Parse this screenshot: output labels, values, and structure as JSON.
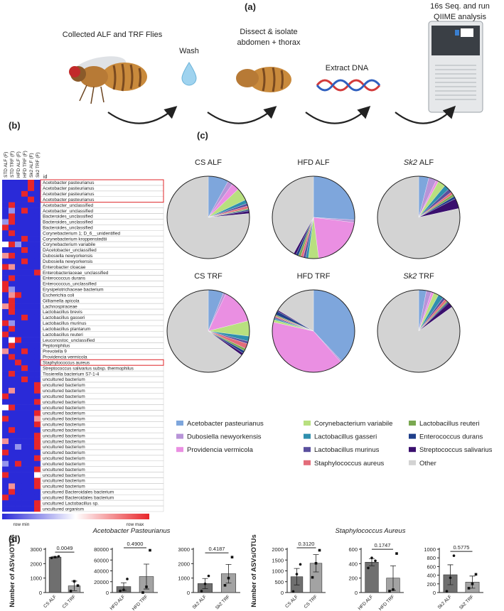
{
  "panel_labels": [
    "(a)",
    "(b)",
    "(c)",
    "(d)"
  ],
  "workflow": {
    "steps": [
      [
        "Collected ALF and TRF Flies"
      ],
      [
        "Wash"
      ],
      [
        "Dissect & isolate",
        "abdomen + thorax"
      ],
      [
        "Extract DNA"
      ],
      [
        "16s Seq. and run",
        "QIIME analysis"
      ]
    ]
  },
  "heatmap": {
    "columns": [
      "STD ALF (F)",
      "STD TRF (F)",
      "HFD ALF (F)",
      "HFD TRF (F)",
      "Sk2 ALF (F)",
      "Sk2 TRF (F)"
    ],
    "row_header": "id",
    "range": [
      -1,
      1
    ],
    "low_color": "#2a2ad8",
    "mid_color": "#ffffff",
    "high_color": "#e8262a",
    "legend": [
      "row min",
      "row max"
    ],
    "rows": [
      {
        "label": "Acetobacter pasteurianus",
        "values": [
          -1,
          -1,
          -1,
          -1,
          1,
          -1
        ],
        "highlight": true
      },
      {
        "label": "Acetobacter pasteurianus",
        "values": [
          -1,
          -1,
          -1,
          -1,
          1,
          -1
        ],
        "highlight": true
      },
      {
        "label": "Acetobacter pasteurianus",
        "values": [
          -1,
          -1,
          -1,
          1,
          -1,
          -1
        ],
        "highlight": true
      },
      {
        "label": "Acetobacter pasteurianus",
        "values": [
          -1,
          -1,
          -1,
          -1,
          1,
          -1
        ],
        "highlight": true
      },
      {
        "label": "Acetobacter_unclassified",
        "values": [
          -1,
          1,
          -1,
          -1,
          -1,
          -1
        ]
      },
      {
        "label": "Acetobacter_unclassified",
        "values": [
          -1,
          -0.5,
          -1,
          1,
          -1,
          -1
        ]
      },
      {
        "label": "Bacteroides_unclassified",
        "values": [
          -1,
          1,
          -1,
          -1,
          -1,
          -1
        ]
      },
      {
        "label": "Bacteroides_unclassified",
        "values": [
          -0.5,
          1,
          -1,
          -1,
          -1,
          -1
        ]
      },
      {
        "label": "Bacteroides_unclassified",
        "values": [
          1,
          -1,
          -1,
          -1,
          -1,
          -1
        ]
      },
      {
        "label": "Corynebacterium 1; D_6__unidentified",
        "values": [
          -1,
          1,
          -1,
          -1,
          -1,
          -1
        ]
      },
      {
        "label": "Corynebacterium kroppenstedtii",
        "values": [
          -1,
          -1,
          -1,
          1,
          -1,
          -1
        ]
      },
      {
        "label": "Corynebacterium variabile",
        "values": [
          0,
          1,
          -0.5,
          -1,
          -1,
          -1
        ]
      },
      {
        "label": "DAcetobacter_unclassified",
        "values": [
          -1,
          -1,
          -1,
          1,
          -1,
          -1
        ]
      },
      {
        "label": "Dubosiella newyorkensis",
        "values": [
          0.5,
          1,
          -1,
          -1,
          -1,
          -1
        ]
      },
      {
        "label": "Dubosiella newyorkensis",
        "values": [
          -1,
          -1,
          -1,
          1,
          -1,
          -1
        ]
      },
      {
        "label": "Enterobacter cloacae",
        "values": [
          1,
          0.5,
          -1,
          -1,
          -1,
          -1
        ]
      },
      {
        "label": "Enterobacteriaceae_unclassified",
        "values": [
          -1,
          -1,
          -1,
          -1,
          -1,
          1
        ]
      },
      {
        "label": "Enterococcus durans",
        "values": [
          -1,
          1,
          -1,
          -1,
          -1,
          -1
        ]
      },
      {
        "label": "Enterococcus_unclassified",
        "values": [
          1,
          -1,
          -1,
          -1,
          -1,
          -1
        ]
      },
      {
        "label": "Erysipelotrichaceae bacterium",
        "values": [
          1,
          -0.5,
          -1,
          -1,
          -1,
          -1
        ]
      },
      {
        "label": "Escherichia coli",
        "values": [
          -1,
          0.5,
          1,
          -1,
          -1,
          -1
        ]
      },
      {
        "label": "Gilliamella apicola",
        "values": [
          -1,
          1,
          -1,
          -1,
          -1,
          -1
        ]
      },
      {
        "label": "Lachnospiraceae",
        "values": [
          0.5,
          1,
          -1,
          -1,
          -1,
          -1
        ]
      },
      {
        "label": "Lactobacillus brevis",
        "values": [
          -1,
          1,
          -1,
          -1,
          -1,
          -1
        ]
      },
      {
        "label": "Lactobacillus gasseri",
        "values": [
          -1,
          -1,
          -1,
          1,
          -1,
          -1
        ]
      },
      {
        "label": "Lactobacillus murinus",
        "values": [
          1,
          -0.5,
          -1,
          -1,
          -1,
          -1
        ]
      },
      {
        "label": "Lactobacillus plantarum",
        "values": [
          -1,
          1,
          -1,
          -1,
          -1,
          -1
        ]
      },
      {
        "label": "Lactobacillus reuteri",
        "values": [
          1,
          -1,
          -1,
          -1,
          -1,
          -1
        ]
      },
      {
        "label": "Leuconostoc_unclassified",
        "values": [
          -1,
          0,
          1,
          -1,
          -1,
          -1
        ]
      },
      {
        "label": "Peptoniphilus",
        "values": [
          -1,
          1,
          -1,
          -1,
          -1,
          -1
        ]
      },
      {
        "label": "Prevotella 9",
        "values": [
          0.5,
          -1,
          -1,
          1,
          -1,
          -1
        ]
      },
      {
        "label": "Providencia vermicola",
        "values": [
          -1,
          1,
          -1,
          -1,
          -1,
          -1
        ]
      },
      {
        "label": "Staphylococcus aureus",
        "values": [
          -1,
          -1,
          1,
          -1,
          -1,
          -1
        ],
        "highlight": true
      },
      {
        "label": "Streptococcus salivarius subsp. thermophilus",
        "values": [
          -1,
          -1,
          -1,
          1,
          -1,
          -1
        ]
      },
      {
        "label": "Tissierella bacterium S7-1-4",
        "values": [
          -1,
          1,
          -1,
          -1,
          -1,
          -1
        ]
      },
      {
        "label": "uncultured bacterium",
        "values": [
          -1,
          -1,
          -1,
          1,
          -1,
          -1
        ]
      },
      {
        "label": "uncultured bacterium",
        "values": [
          -1,
          -1,
          -1,
          -1,
          -1,
          1
        ]
      },
      {
        "label": "uncultured bacterium",
        "values": [
          -1,
          0.5,
          -1,
          -1,
          -1,
          1
        ]
      },
      {
        "label": "uncultured bacterium",
        "values": [
          1,
          -1,
          -1,
          -1,
          -1,
          -1
        ]
      },
      {
        "label": "uncultured bacterium",
        "values": [
          -1,
          -1,
          -1,
          -1,
          -1,
          1
        ]
      },
      {
        "label": "uncultured bacterium",
        "values": [
          0,
          1,
          -1,
          -1,
          -1,
          -1
        ]
      },
      {
        "label": "uncultured bacterium",
        "values": [
          -1,
          -1,
          -1,
          -1,
          -1,
          1
        ]
      },
      {
        "label": "uncultured bacterium",
        "values": [
          1,
          -1,
          -1,
          -1,
          -1,
          0.5
        ]
      },
      {
        "label": "uncultured bacterium",
        "values": [
          -1,
          -1,
          -1,
          -1,
          -1,
          1
        ]
      },
      {
        "label": "uncultured bacterium",
        "values": [
          -1,
          1,
          -1,
          -1,
          -1,
          -1
        ]
      },
      {
        "label": "uncultured bacterium",
        "values": [
          -1,
          -1,
          -1,
          -1,
          -1,
          1
        ]
      },
      {
        "label": "uncultured bacterium",
        "values": [
          0.5,
          -1,
          -1,
          -1,
          -1,
          1
        ]
      },
      {
        "label": "uncultured bacterium",
        "values": [
          -1,
          -1,
          -0.5,
          -1,
          -1,
          1
        ]
      },
      {
        "label": "uncultured bacterium",
        "values": [
          1,
          -1,
          -1,
          -1,
          -1,
          -1
        ]
      },
      {
        "label": "uncultured bacterium",
        "values": [
          -1,
          -1,
          -1,
          -1,
          -1,
          1
        ]
      },
      {
        "label": "uncultured bacterium",
        "values": [
          -0.5,
          -1,
          1,
          -1,
          -1,
          -1
        ]
      },
      {
        "label": "uncultured bacterium",
        "values": [
          -1,
          -1,
          -1,
          -1,
          -1,
          1
        ]
      },
      {
        "label": "uncultured bacterium",
        "values": [
          1,
          -1,
          -1,
          -1,
          -1,
          0
        ]
      },
      {
        "label": "uncultured bacterium",
        "values": [
          -1,
          -1,
          -1,
          -1,
          -1,
          1
        ]
      },
      {
        "label": "uncultured bacterium",
        "values": [
          -1,
          0.5,
          -1,
          -1,
          -1,
          1
        ]
      },
      {
        "label": "uncultured Bacteroidales bacterium",
        "values": [
          -1,
          1,
          -1,
          -1,
          -1,
          -1
        ]
      },
      {
        "label": "uncultured Bacteroidales bacterium",
        "values": [
          1,
          -1,
          -1,
          -1,
          -1,
          -1
        ]
      },
      {
        "label": "uncultured Lactobacillus sp.",
        "values": [
          -1,
          -1,
          -1,
          -1,
          -1,
          1
        ]
      },
      {
        "label": "uncultured organism",
        "values": [
          -1,
          -1,
          -1,
          -1,
          -1,
          1
        ]
      }
    ]
  },
  "pie_legend": {
    "categories": [
      "Acetobacter pasteurianus",
      "Dubosiella newyorkensis",
      "Providencia vermicola",
      "Corynebacterium variabile",
      "Lactobacillus gasseri",
      "Lactobacillus murinus",
      "Staphylococcus aureus",
      "Lactobacillus reuteri",
      "Enterococcus durans",
      "Streptococcus salivarius",
      "Other"
    ],
    "colors": [
      "#7ea6dc",
      "#b894d8",
      "#ea8fe2",
      "#b8e07f",
      "#2f8fae",
      "#5a4f9e",
      "#e36c7a",
      "#7aa851",
      "#1f3f8a",
      "#3a0f6e",
      "#d3d3d3"
    ]
  },
  "d_titles": [
    "Acetobacter Pasteurianus",
    "Staphylococcus Aureus"
  ],
  "chart_data": [
    {
      "type": "pie",
      "title": "CS ALF",
      "values": [
        8,
        2,
        3,
        5,
        1.5,
        1,
        1,
        0.5,
        0.5,
        1,
        76.5
      ]
    },
    {
      "type": "pie",
      "title": "HFD ALF",
      "values": [
        26,
        1,
        21,
        4,
        1,
        1,
        1,
        1,
        1,
        1,
        42
      ]
    },
    {
      "type": "pie",
      "title_italic": "Sk2",
      "title": "ALF",
      "values": [
        4,
        3,
        1,
        3,
        2,
        1.5,
        1,
        1,
        1,
        4,
        78.5
      ]
    },
    {
      "type": "pie",
      "title": "CS TRF",
      "values": [
        6,
        1,
        14,
        6,
        2,
        1,
        2,
        1,
        1,
        1,
        65
      ]
    },
    {
      "type": "pie",
      "title": "HFD TRF",
      "values": [
        38,
        0.5,
        40,
        1,
        0.5,
        0.5,
        0.5,
        0.5,
        1.5,
        0.5,
        16.5
      ]
    },
    {
      "type": "pie",
      "title_italic": "Sk2",
      "title": "TRF",
      "values": [
        3,
        2,
        1,
        2,
        2,
        1,
        1,
        0.5,
        0.5,
        2,
        85
      ]
    },
    {
      "type": "bar",
      "ylabel": "Number of ASVs/OTUs",
      "categories": [
        "CS ALF",
        "CS TRF"
      ],
      "values": [
        2450,
        460
      ],
      "errors": [
        50,
        330
      ],
      "points": [
        [
          2400,
          2450,
          2500
        ],
        [
          100,
          780,
          480
        ]
      ],
      "p_value": "0.0049",
      "colors": [
        "#6f6f6f",
        "#a3a3a3"
      ],
      "ylim": [
        0,
        3000
      ],
      "yticks": [
        0,
        1000,
        2000,
        3000
      ]
    },
    {
      "type": "bar",
      "categories": [
        "HFD ALF",
        "HFD TRF"
      ],
      "values": [
        11000,
        29500
      ],
      "errors": [
        7000,
        23000
      ],
      "points": [
        [
          3000,
          5000,
          25000
        ],
        [
          0,
          10500,
          78000
        ]
      ],
      "p_value": "0.4900",
      "colors": [
        "#6f6f6f",
        "#a3a3a3"
      ],
      "ylim": [
        0,
        80000
      ],
      "yticks": [
        0,
        20000,
        40000,
        60000,
        80000
      ]
    },
    {
      "type": "bar",
      "categories": [
        "Sk2 ALF",
        "Sk2 TRF"
      ],
      "values": [
        620,
        1300
      ],
      "errors": [
        350,
        650
      ],
      "points": [
        [
          100,
          600,
          1150
        ],
        [
          500,
          1000,
          2450
        ]
      ],
      "p_value": "0.4187",
      "colors": [
        "#6f6f6f",
        "#a3a3a3"
      ],
      "ylim": [
        0,
        3000
      ],
      "yticks": [
        0,
        1000,
        2000,
        3000
      ]
    },
    {
      "type": "bar",
      "ylabel": "Number of ASVs/OTUs",
      "categories": [
        "CS ALF",
        "CS TRF"
      ],
      "values": [
        730,
        1350
      ],
      "errors": [
        380,
        400
      ],
      "points": [
        [
          50,
          850,
          1300
        ],
        [
          700,
          1350,
          1950
        ]
      ],
      "p_value": "0.3120",
      "colors": [
        "#6f6f6f",
        "#a3a3a3"
      ],
      "ylim": [
        0,
        2000
      ],
      "yticks": [
        0,
        500,
        1000,
        1500,
        2000
      ]
    },
    {
      "type": "bar",
      "categories": [
        "HFD ALF",
        "HFD TRF"
      ],
      "values": [
        420,
        200
      ],
      "errors": [
        50,
        170
      ],
      "points": [
        [
          340,
          480,
          440
        ],
        [
          20,
          40,
          540
        ]
      ],
      "p_value": "0.1747",
      "colors": [
        "#6f6f6f",
        "#a3a3a3"
      ],
      "ylim": [
        0,
        600
      ],
      "yticks": [
        0,
        200,
        400,
        600
      ]
    },
    {
      "type": "bar",
      "categories": [
        "Sk2 ALF",
        "Sk2 TRF"
      ],
      "values": [
        410,
        240
      ],
      "errors": [
        230,
        140
      ],
      "points": [
        [
          30,
          340,
          850
        ],
        [
          100,
          200,
          420
        ]
      ],
      "p_value": "0.5775",
      "colors": [
        "#6f6f6f",
        "#a3a3a3"
      ],
      "ylim": [
        0,
        1000
      ],
      "yticks": [
        0,
        200,
        400,
        600,
        800,
        1000
      ]
    }
  ]
}
